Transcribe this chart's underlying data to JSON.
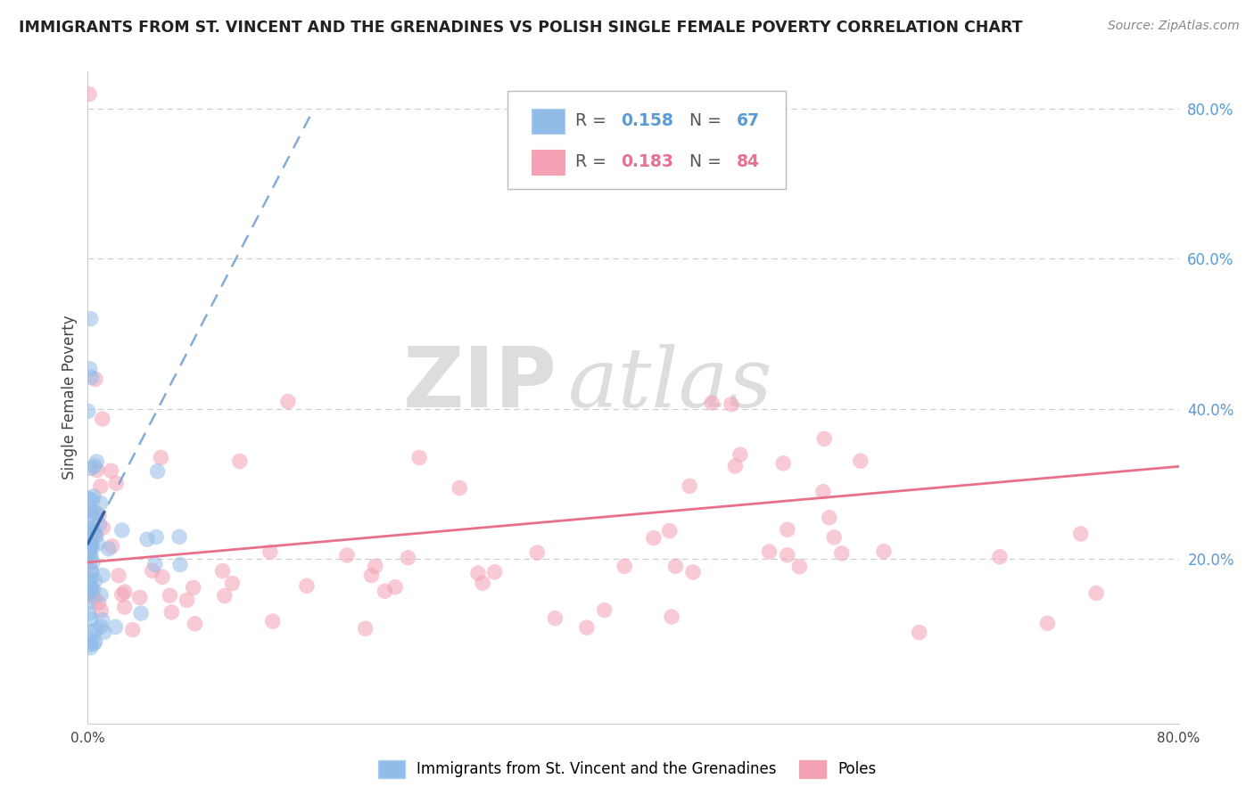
{
  "title": "IMMIGRANTS FROM ST. VINCENT AND THE GRENADINES VS POLISH SINGLE FEMALE POVERTY CORRELATION CHART",
  "source": "Source: ZipAtlas.com",
  "ylabel": "Single Female Poverty",
  "xlim": [
    0.0,
    0.8
  ],
  "ylim": [
    -0.02,
    0.85
  ],
  "yticks_right": [
    0.2,
    0.4,
    0.6,
    0.8
  ],
  "ytick_right_labels": [
    "20.0%",
    "40.0%",
    "60.0%",
    "80.0%"
  ],
  "blue_color": "#92bce8",
  "pink_color": "#f4a0b5",
  "blue_line_color": "#6699cc",
  "pink_line_color": "#e8708a",
  "R_blue": 0.158,
  "N_blue": 67,
  "R_pink": 0.183,
  "N_pink": 84,
  "legend_blue_label": "Immigrants from St. Vincent and the Grenadines",
  "legend_pink_label": "Poles",
  "watermark_zip": "ZIP",
  "watermark_atlas": "atlas",
  "grid_color": "#cccccc",
  "background_color": "#ffffff",
  "blue_trend_slope": 3.5,
  "blue_trend_intercept": 0.22,
  "blue_trend_xmax": 0.165,
  "pink_trend_slope": 0.16,
  "pink_trend_intercept": 0.195
}
